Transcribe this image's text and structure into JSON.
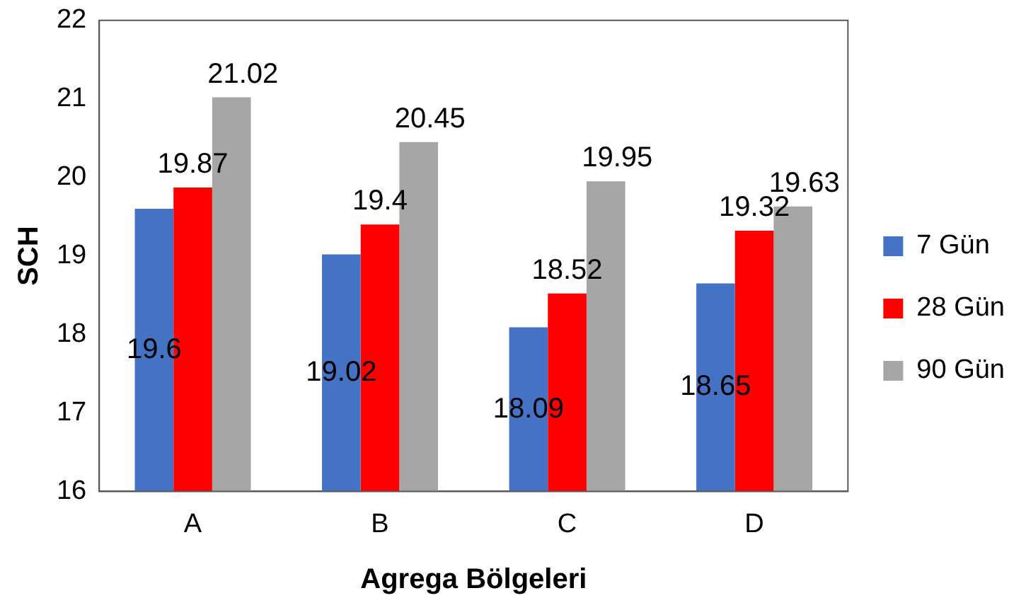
{
  "chart_data": {
    "type": "bar",
    "xlabel": "Agrega Bölgeleri",
    "ylabel": "SCH",
    "categories": [
      "A",
      "B",
      "C",
      "D"
    ],
    "series": [
      {
        "name": "7 Gün",
        "color": "#4472c4",
        "values": [
          19.6,
          19.02,
          18.09,
          18.65
        ]
      },
      {
        "name": "28 Gün",
        "color": "#ff0000",
        "values": [
          19.87,
          19.4,
          18.52,
          19.32
        ]
      },
      {
        "name": "90 Gün",
        "color": "#a6a6a6",
        "values": [
          21.02,
          20.45,
          19.95,
          19.63
        ]
      }
    ],
    "ylim": [
      16,
      22
    ],
    "yticks": [
      16,
      17,
      18,
      19,
      20,
      21,
      22
    ],
    "grid": false,
    "legend": "right",
    "data_labels": true
  }
}
